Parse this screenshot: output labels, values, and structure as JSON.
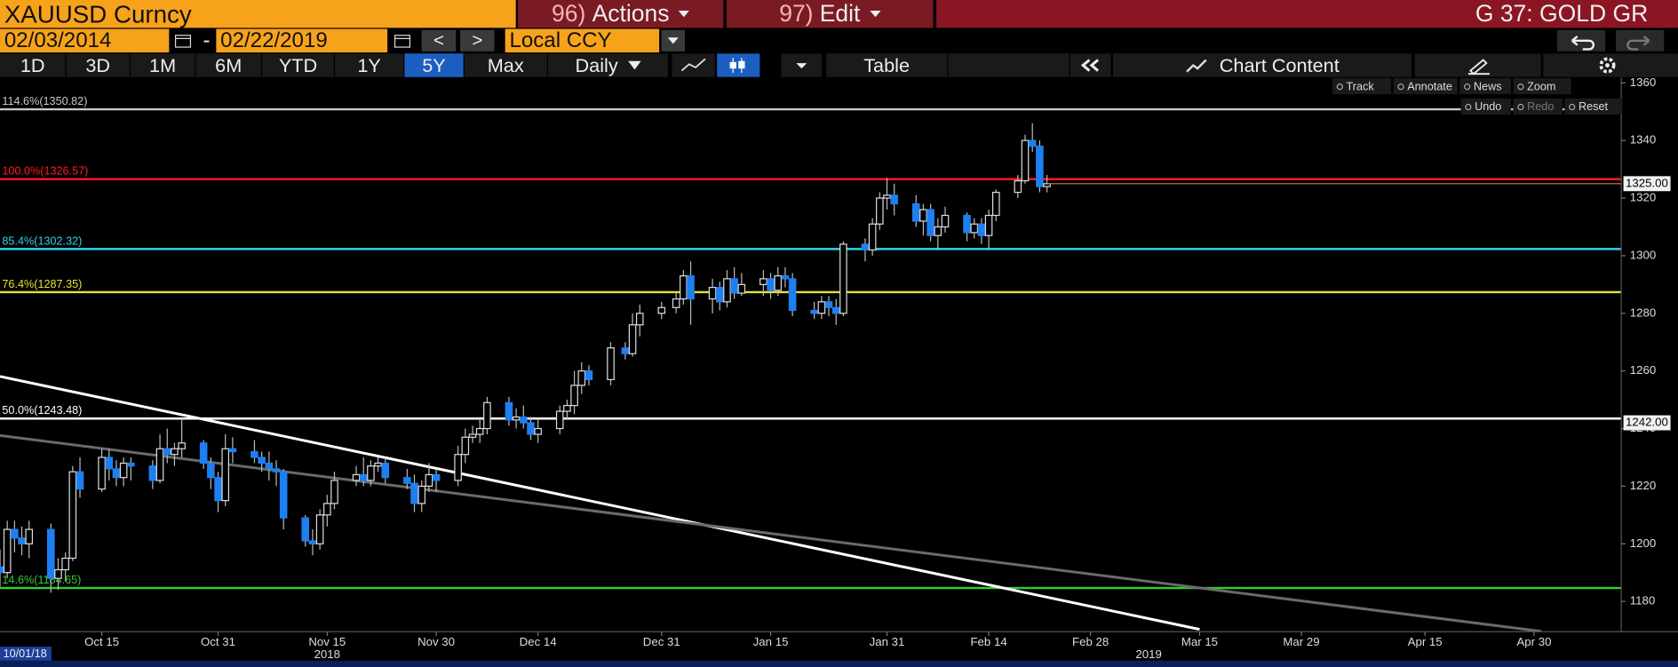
{
  "ui": {
    "security": "XAUUSD Curncy",
    "actions": {
      "num": "96)",
      "label": "Actions"
    },
    "edit": {
      "num": "97)",
      "label": "Edit"
    },
    "page": "G 37: GOLD GR",
    "start_date": "02/03/2014",
    "separator": "-",
    "end_date": "02/22/2019",
    "prev": "<",
    "next": ">",
    "currency": "Local CCY",
    "periods": [
      "1D",
      "3D",
      "1M",
      "6M",
      "YTD",
      "1Y",
      "5Y",
      "Max"
    ],
    "selected_period": 6,
    "frequency": "Daily",
    "table": "Table",
    "chart_content": "Chart Content",
    "chart_tools": [
      "Track",
      "Annotate",
      "News",
      "Zoom"
    ],
    "edit_tools": [
      "Undo",
      "Redo",
      "Reset"
    ]
  },
  "chart_data": {
    "type": "candlestick",
    "start_label": "10/01/18",
    "up_color": "#dddddd",
    "down_color": "#1e7ff0",
    "x": [
      "2018-10-01",
      "2018-10-02",
      "2018-10-03",
      "2018-10-04",
      "2018-10-05",
      "2018-10-08",
      "2018-10-09",
      "2018-10-10",
      "2018-10-11",
      "2018-10-12",
      "2018-10-15",
      "2018-10-16",
      "2018-10-17",
      "2018-10-18",
      "2018-10-19",
      "2018-10-22",
      "2018-10-23",
      "2018-10-24",
      "2018-10-25",
      "2018-10-26",
      "2018-10-29",
      "2018-10-30",
      "2018-10-31",
      "2018-11-01",
      "2018-11-02",
      "2018-11-05",
      "2018-11-06",
      "2018-11-07",
      "2018-11-08",
      "2018-11-09",
      "2018-11-12",
      "2018-11-13",
      "2018-11-14",
      "2018-11-15",
      "2018-11-16",
      "2018-11-19",
      "2018-11-20",
      "2018-11-21",
      "2018-11-22",
      "2018-11-23",
      "2018-11-26",
      "2018-11-27",
      "2018-11-28",
      "2018-11-29",
      "2018-11-30",
      "2018-12-03",
      "2018-12-04",
      "2018-12-05",
      "2018-12-06",
      "2018-12-07",
      "2018-12-10",
      "2018-12-11",
      "2018-12-12",
      "2018-12-13",
      "2018-12-14",
      "2018-12-17",
      "2018-12-18",
      "2018-12-19",
      "2018-12-20",
      "2018-12-21",
      "2018-12-24",
      "2018-12-26",
      "2018-12-27",
      "2018-12-28",
      "2018-12-31",
      "2019-01-02",
      "2019-01-03",
      "2019-01-04",
      "2019-01-07",
      "2019-01-08",
      "2019-01-09",
      "2019-01-10",
      "2019-01-11",
      "2019-01-14",
      "2019-01-15",
      "2019-01-16",
      "2019-01-17",
      "2019-01-18",
      "2019-01-21",
      "2019-01-22",
      "2019-01-23",
      "2019-01-24",
      "2019-01-25",
      "2019-01-28",
      "2019-01-29",
      "2019-01-30",
      "2019-01-31",
      "2019-02-01",
      "2019-02-04",
      "2019-02-05",
      "2019-02-06",
      "2019-02-07",
      "2019-02-08",
      "2019-02-11",
      "2019-02-12",
      "2019-02-13",
      "2019-02-14",
      "2019-02-15",
      "2019-02-18",
      "2019-02-19",
      "2019-02-20",
      "2019-02-21",
      "2019-02-22"
    ],
    "open": [
      1192,
      1190,
      1205,
      1202,
      1200,
      1205,
      1188,
      1191,
      1195,
      1225,
      1219,
      1230,
      1226,
      1223,
      1228,
      1227,
      1222,
      1233,
      1231,
      1233,
      1235,
      1228,
      1223,
      1215,
      1233,
      1232,
      1230,
      1228,
      1226,
      1225,
      1209,
      1201,
      1200,
      1210,
      1214,
      1222,
      1224,
      1222,
      1227,
      1228,
      1223,
      1221,
      1214,
      1220,
      1224,
      1222,
      1231,
      1237,
      1238,
      1240,
      1249,
      1243,
      1244,
      1242,
      1238,
      1240,
      1246,
      1248,
      1255,
      1260,
      1257,
      1268,
      1266,
      1276,
      1280,
      1282,
      1285,
      1293,
      1285,
      1289,
      1284,
      1292,
      1287,
      1290,
      1292,
      1288,
      1293,
      1292,
      1281,
      1280,
      1284,
      1282,
      1280,
      1304,
      1302,
      1311,
      1320,
      1321,
      1318,
      1312,
      1316,
      1307,
      1310,
      1314,
      1308,
      1311,
      1307,
      1314,
      1322,
      1326,
      1340,
      1338,
      1324
    ],
    "high": [
      1198,
      1208,
      1208,
      1206,
      1208,
      1207,
      1195,
      1197,
      1227,
      1230,
      1233,
      1233,
      1229,
      1230,
      1230,
      1229,
      1238,
      1240,
      1235,
      1243,
      1236,
      1230,
      1225,
      1238,
      1237,
      1236,
      1232,
      1232,
      1229,
      1226,
      1210,
      1205,
      1212,
      1217,
      1225,
      1227,
      1230,
      1229,
      1230,
      1230,
      1226,
      1224,
      1222,
      1228,
      1226,
      1234,
      1240,
      1241,
      1244,
      1251,
      1251,
      1247,
      1248,
      1244,
      1243,
      1248,
      1250,
      1260,
      1263,
      1262,
      1270,
      1270,
      1280,
      1283,
      1284,
      1287,
      1295,
      1298,
      1292,
      1291,
      1295,
      1296,
      1294,
      1295,
      1294,
      1296,
      1296,
      1294,
      1284,
      1286,
      1286,
      1285,
      1305,
      1306,
      1313,
      1322,
      1327,
      1325,
      1321,
      1318,
      1318,
      1313,
      1317,
      1315,
      1313,
      1313,
      1316,
      1323,
      1328,
      1342,
      1346,
      1340,
      1328
    ],
    "low": [
      1185,
      1188,
      1197,
      1196,
      1195,
      1183,
      1184,
      1187,
      1194,
      1216,
      1218,
      1222,
      1220,
      1220,
      1222,
      1219,
      1221,
      1228,
      1227,
      1230,
      1226,
      1219,
      1211,
      1213,
      1228,
      1228,
      1225,
      1222,
      1220,
      1205,
      1199,
      1196,
      1198,
      1206,
      1212,
      1220,
      1220,
      1220,
      1225,
      1221,
      1219,
      1211,
      1211,
      1218,
      1218,
      1220,
      1228,
      1235,
      1235,
      1238,
      1241,
      1240,
      1240,
      1236,
      1235,
      1238,
      1243,
      1245,
      1252,
      1255,
      1255,
      1264,
      1265,
      1272,
      1278,
      1280,
      1283,
      1276,
      1280,
      1281,
      1282,
      1285,
      1286,
      1286,
      1285,
      1286,
      1289,
      1279,
      1278,
      1278,
      1279,
      1276,
      1279,
      1298,
      1300,
      1309,
      1316,
      1314,
      1310,
      1307,
      1305,
      1302,
      1308,
      1305,
      1306,
      1304,
      1302,
      1312,
      1320,
      1325,
      1336,
      1322,
      1322
    ],
    "close": [
      1190,
      1205,
      1202,
      1200,
      1205,
      1188,
      1191,
      1195,
      1225,
      1219,
      1230,
      1226,
      1223,
      1228,
      1227,
      1222,
      1233,
      1231,
      1233,
      1235,
      1228,
      1223,
      1215,
      1233,
      1232,
      1230,
      1228,
      1226,
      1225,
      1209,
      1201,
      1200,
      1210,
      1214,
      1222,
      1224,
      1222,
      1227,
      1228,
      1223,
      1221,
      1214,
      1220,
      1224,
      1222,
      1231,
      1237,
      1238,
      1240,
      1249,
      1243,
      1244,
      1242,
      1238,
      1240,
      1246,
      1248,
      1255,
      1260,
      1257,
      1268,
      1266,
      1276,
      1280,
      1282,
      1285,
      1293,
      1285,
      1289,
      1284,
      1292,
      1287,
      1290,
      1292,
      1288,
      1293,
      1292,
      1281,
      1280,
      1284,
      1282,
      1280,
      1304,
      1302,
      1311,
      1320,
      1321,
      1318,
      1312,
      1316,
      1307,
      1310,
      1314,
      1308,
      1311,
      1307,
      1314,
      1322,
      1326,
      1340,
      1338,
      1324,
      1325
    ],
    "xlim": [
      "2018-10-01",
      "2019-05-12"
    ],
    "xticks": [
      {
        "value": "2018-10-15",
        "label": "Oct 15"
      },
      {
        "value": "2018-10-31",
        "label": "Oct 31"
      },
      {
        "value": "2018-11-15",
        "label": "Nov 15"
      },
      {
        "value": "2018-11-30",
        "label": "Nov 30"
      },
      {
        "value": "2018-12-14",
        "label": "Dec 14"
      },
      {
        "value": "2018-12-31",
        "label": "Dec 31"
      },
      {
        "value": "2019-01-15",
        "label": "Jan 15"
      },
      {
        "value": "2019-01-31",
        "label": "Jan 31"
      },
      {
        "value": "2019-02-14",
        "label": "Feb 14"
      },
      {
        "value": "2019-02-28",
        "label": "Feb 28"
      },
      {
        "value": "2019-03-15",
        "label": "Mar 15"
      },
      {
        "value": "2019-03-29",
        "label": "Mar 29"
      },
      {
        "value": "2019-04-15",
        "label": "Apr 15"
      },
      {
        "value": "2019-04-30",
        "label": "Apr 30"
      }
    ],
    "year_labels": [
      {
        "value": "2018-11-15",
        "label": "2018"
      },
      {
        "value": "2019-03-08",
        "label": "2019"
      }
    ],
    "ylim": [
      1169.5,
      1362
    ],
    "yticks": [
      1180,
      1200,
      1220,
      1240,
      1260,
      1280,
      1300,
      1320,
      1340,
      1360
    ],
    "levels": [
      {
        "label": "114.6%(1350.82)",
        "value": 1350.82,
        "color": "#c8c8c8"
      },
      {
        "label": "100.0%(1326.57)",
        "value": 1326.57,
        "color": "#ff1c1c"
      },
      {
        "label": "85.4%(1302.32)",
        "value": 1302.32,
        "color": "#2fd3ec"
      },
      {
        "label": "76.4%(1287.35)",
        "value": 1287.35,
        "color": "#e8e22a"
      },
      {
        "label": "50.0%(1243.48)",
        "value": 1243.48,
        "color": "#ffffff"
      },
      {
        "label": "14.6%(1184.65)",
        "value": 1184.65,
        "color": "#2fd02f"
      }
    ],
    "trendlines": [
      {
        "color": "#ffffff",
        "points": [
          [
            "2018-10-01",
            1258.1
          ],
          [
            "2019-03-15",
            1170.3
          ]
        ]
      },
      {
        "color": "#6a6a6a",
        "points": [
          [
            "2018-10-01",
            1237.6
          ],
          [
            "2019-05-01",
            1169.6
          ]
        ]
      }
    ],
    "last_line_color": "#c8874a",
    "price_tags": [
      {
        "value": 1325,
        "label": "1325.00"
      },
      {
        "value": 1242,
        "label": "1242.00"
      }
    ]
  }
}
